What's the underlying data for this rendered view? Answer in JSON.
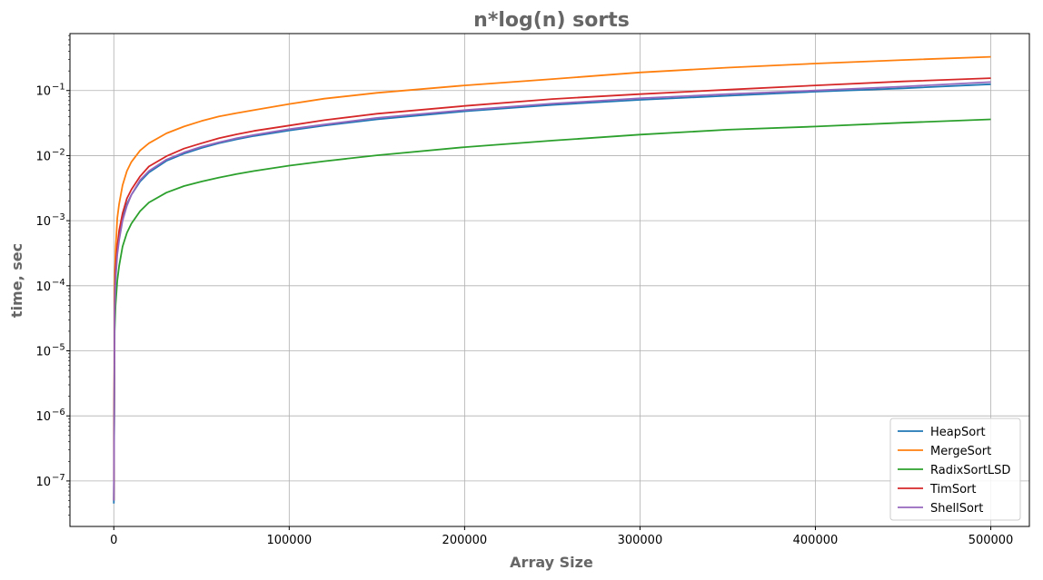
{
  "chart_data": {
    "type": "line",
    "title": "n*log(n) sorts",
    "xlabel": "Array Size",
    "ylabel": "time, sec",
    "xscale": "linear",
    "yscale": "log",
    "xlim": [
      -25000,
      522000
    ],
    "ylim": [
      2e-08,
      0.75
    ],
    "grid": true,
    "legend_position": "lower-right",
    "x_ticks": [
      0,
      100000,
      200000,
      300000,
      400000,
      500000
    ],
    "x_tick_labels": [
      "0",
      "100000",
      "200000",
      "300000",
      "400000",
      "500000"
    ],
    "y_ticks": [
      1e-07,
      1e-06,
      1e-05,
      0.0001,
      0.001,
      0.01,
      0.1
    ],
    "y_tick_labels": [
      {
        "base": "10",
        "exp": "−7"
      },
      {
        "base": "10",
        "exp": "−6"
      },
      {
        "base": "10",
        "exp": "−5"
      },
      {
        "base": "10",
        "exp": "−4"
      },
      {
        "base": "10",
        "exp": "−3"
      },
      {
        "base": "10",
        "exp": "−2"
      },
      {
        "base": "10",
        "exp": "−1"
      }
    ],
    "x": [
      0,
      500,
      1000,
      2000,
      3000,
      5000,
      7500,
      10000,
      15000,
      20000,
      30000,
      40000,
      50000,
      60000,
      70000,
      80000,
      100000,
      120000,
      150000,
      200000,
      250000,
      300000,
      350000,
      400000,
      450000,
      500000
    ],
    "series": [
      {
        "name": "HeapSort",
        "color": "#1f77b4",
        "values": [
          4.5e-08,
          5e-05,
          0.00015,
          0.00035,
          0.0006,
          0.0011,
          0.0018,
          0.0025,
          0.004,
          0.0055,
          0.0083,
          0.0107,
          0.0131,
          0.0155,
          0.0178,
          0.02,
          0.0244,
          0.029,
          0.036,
          0.048,
          0.06,
          0.072,
          0.083,
          0.096,
          0.108,
          0.125
        ]
      },
      {
        "name": "MergeSort",
        "color": "#ff7f0e",
        "values": [
          1e-07,
          0.00012,
          0.00035,
          0.0011,
          0.0018,
          0.0035,
          0.0058,
          0.008,
          0.012,
          0.0155,
          0.022,
          0.028,
          0.034,
          0.04,
          0.045,
          0.05,
          0.062,
          0.075,
          0.092,
          0.12,
          0.15,
          0.19,
          0.225,
          0.26,
          0.295,
          0.33
        ]
      },
      {
        "name": "RadixSortLSD",
        "color": "#2ca02c",
        "values": [
          5e-08,
          2e-05,
          5e-05,
          0.00012,
          0.0002,
          0.0004,
          0.00065,
          0.0009,
          0.0014,
          0.0019,
          0.0027,
          0.0034,
          0.004,
          0.0046,
          0.0052,
          0.0058,
          0.007,
          0.0082,
          0.0101,
          0.0135,
          0.017,
          0.021,
          0.025,
          0.028,
          0.032,
          0.036
        ]
      },
      {
        "name": "TimSort",
        "color": "#d62728",
        "values": [
          5e-08,
          6e-05,
          0.00018,
          0.0004,
          0.0007,
          0.0013,
          0.0022,
          0.003,
          0.0048,
          0.0068,
          0.0098,
          0.0128,
          0.0155,
          0.0185,
          0.0212,
          0.024,
          0.029,
          0.035,
          0.044,
          0.058,
          0.074,
          0.088,
          0.103,
          0.12,
          0.138,
          0.155
        ]
      },
      {
        "name": "ShellSort",
        "color": "#9467bd",
        "values": [
          5e-08,
          4e-05,
          0.00012,
          0.0003,
          0.0005,
          0.001,
          0.0017,
          0.0025,
          0.0042,
          0.0058,
          0.0087,
          0.0112,
          0.0137,
          0.016,
          0.0185,
          0.0208,
          0.0255,
          0.03,
          0.038,
          0.05,
          0.063,
          0.076,
          0.088,
          0.1,
          0.115,
          0.135
        ]
      }
    ]
  }
}
